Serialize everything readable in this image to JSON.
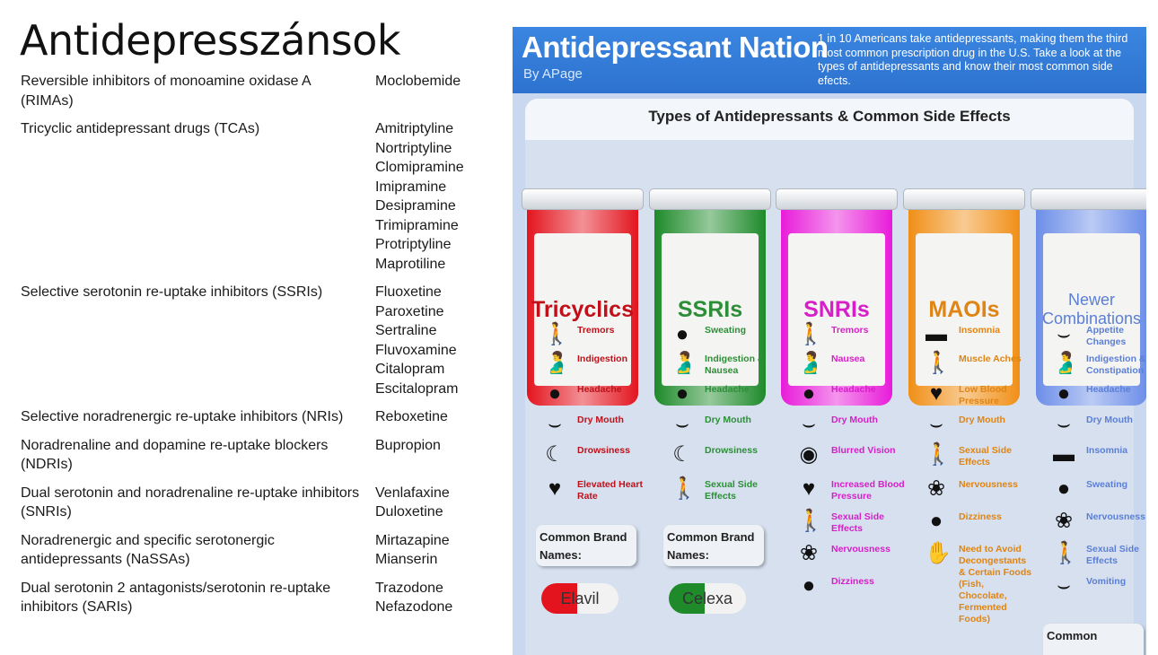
{
  "page": {
    "title": "Antidepresszánsok"
  },
  "classes": [
    {
      "name": "Reversible inhibitors of monoamine oxidase A (RIMAs)",
      "drugs": [
        "Moclobemide"
      ]
    },
    {
      "name": "Tricyclic antidepressant drugs (TCAs)",
      "drugs": [
        "Amitriptyline",
        "Nortriptyline",
        "Clomipramine",
        "Imipramine",
        "Desipramine",
        "Trimipramine",
        "Protriptyline",
        "Maprotiline"
      ]
    },
    {
      "name": "Selective serotonin re-uptake inhibitors (SSRIs)",
      "drugs": [
        "Fluoxetine",
        "Paroxetine",
        "Sertraline",
        "Fluvoxamine",
        "Citalopram",
        "Escitalopram"
      ]
    },
    {
      "name": "Selective noradrenergic re-uptake inhibitors (NRIs)",
      "drugs": [
        "Reboxetine"
      ]
    },
    {
      "name": "Noradrenaline and dopamine re-uptake blockers (NDRIs)",
      "drugs": [
        "Bupropion"
      ]
    },
    {
      "name": "Dual serotonin and noradrenaline re-uptake inhibitors (SNRIs)",
      "drugs": [
        "Venlafaxine",
        "Duloxetine"
      ]
    },
    {
      "name": "Noradrenergic and specific serotonergic antidepressants (NaSSAs)",
      "drugs": [
        "Mirtazapine",
        "Mianserin"
      ]
    },
    {
      "name": "Dual serotonin 2 antagonists/serotonin re-uptake inhibitors (SARIs)",
      "drugs": [
        "Trazodone",
        "Nefazodone"
      ]
    }
  ],
  "infographic": {
    "title": "Antidepressant Nation",
    "byline": "By APage",
    "description": "1 in 10 Americans take antidepressants, making them the third most common prescription drug in the U.S. Take a look at the types of antidepressants and know their most common side efects.",
    "panel_title": "Types of Antidepressants & Common Side Effects",
    "brand_label": "Common Brand Names:",
    "bottles": [
      {
        "label": "Tricyclics",
        "color": "#e3141e",
        "text_color": "#c0101a",
        "effects": [
          "Tremors",
          "Indigestion",
          "Headache",
          "Dry Mouth",
          "Drowsiness",
          "Elevated Heart Rate"
        ],
        "icons": [
          "body-icon",
          "stomach-icon",
          "head-icon",
          "mouth-icon",
          "drowsy-icon",
          "heart-icon"
        ],
        "brands": [
          "Elavil"
        ]
      },
      {
        "label": "SSRIs",
        "color": "#1e8a2a",
        "text_color": "#2c8f37",
        "effects": [
          "Sweating",
          "Indigestion & Nausea",
          "Headache",
          "Dry Mouth",
          "Drowsiness",
          "Sexual Side Effects"
        ],
        "icons": [
          "head-icon",
          "stomach-icon",
          "head-icon",
          "mouth-icon",
          "drowsy-icon",
          "body-icon"
        ],
        "brands": [
          "Celexa"
        ]
      },
      {
        "label": "SNRIs",
        "color": "#e81bd9",
        "text_color": "#d61fc8",
        "effects": [
          "Tremors",
          "Nausea",
          "Headache",
          "Dry Mouth",
          "Blurred Vision",
          "Increased Blood Pressure",
          "Sexual Side Effects",
          "Nervousness",
          "Dizziness"
        ],
        "icons": [
          "body-icon",
          "stomach-icon",
          "head-icon",
          "mouth-icon",
          "eye-icon",
          "heart-icon",
          "body-icon",
          "brain-icon",
          "head-icon"
        ],
        "brands": []
      },
      {
        "label": "MAOIs",
        "color": "#f08f16",
        "text_color": "#e08414",
        "effects": [
          "Insomnia",
          "Muscle Aches",
          "Low Blood Pressure",
          "Dry Mouth",
          "Sexual Side Effects",
          "Nervousness",
          "Dizziness",
          "Need to Avoid Decongestants & Certain Foods (Fish, Chocolate, Fermented Foods)"
        ],
        "icons": [
          "bed-icon",
          "body-icon",
          "heart-icon",
          "mouth-icon",
          "body-icon",
          "brain-icon",
          "head-icon",
          "hand-icon"
        ],
        "brands": []
      },
      {
        "label": "Newer Combinations",
        "color": "#6c8ee8",
        "text_color": "#5b7fd6",
        "effects": [
          "Appetite Changes",
          "Indigestion & Constipation",
          "Headache",
          "Dry Mouth",
          "Insomnia",
          "Sweating",
          "Nervousness",
          "Sexual Side Effects",
          "Vomiting"
        ],
        "icons": [
          "mouth-icon",
          "stomach-icon",
          "head-icon",
          "mouth-icon",
          "bed-icon",
          "head-icon",
          "brain-icon",
          "body-icon",
          "mouth-icon"
        ],
        "brands": []
      }
    ],
    "partial_brand_label": "Common"
  }
}
